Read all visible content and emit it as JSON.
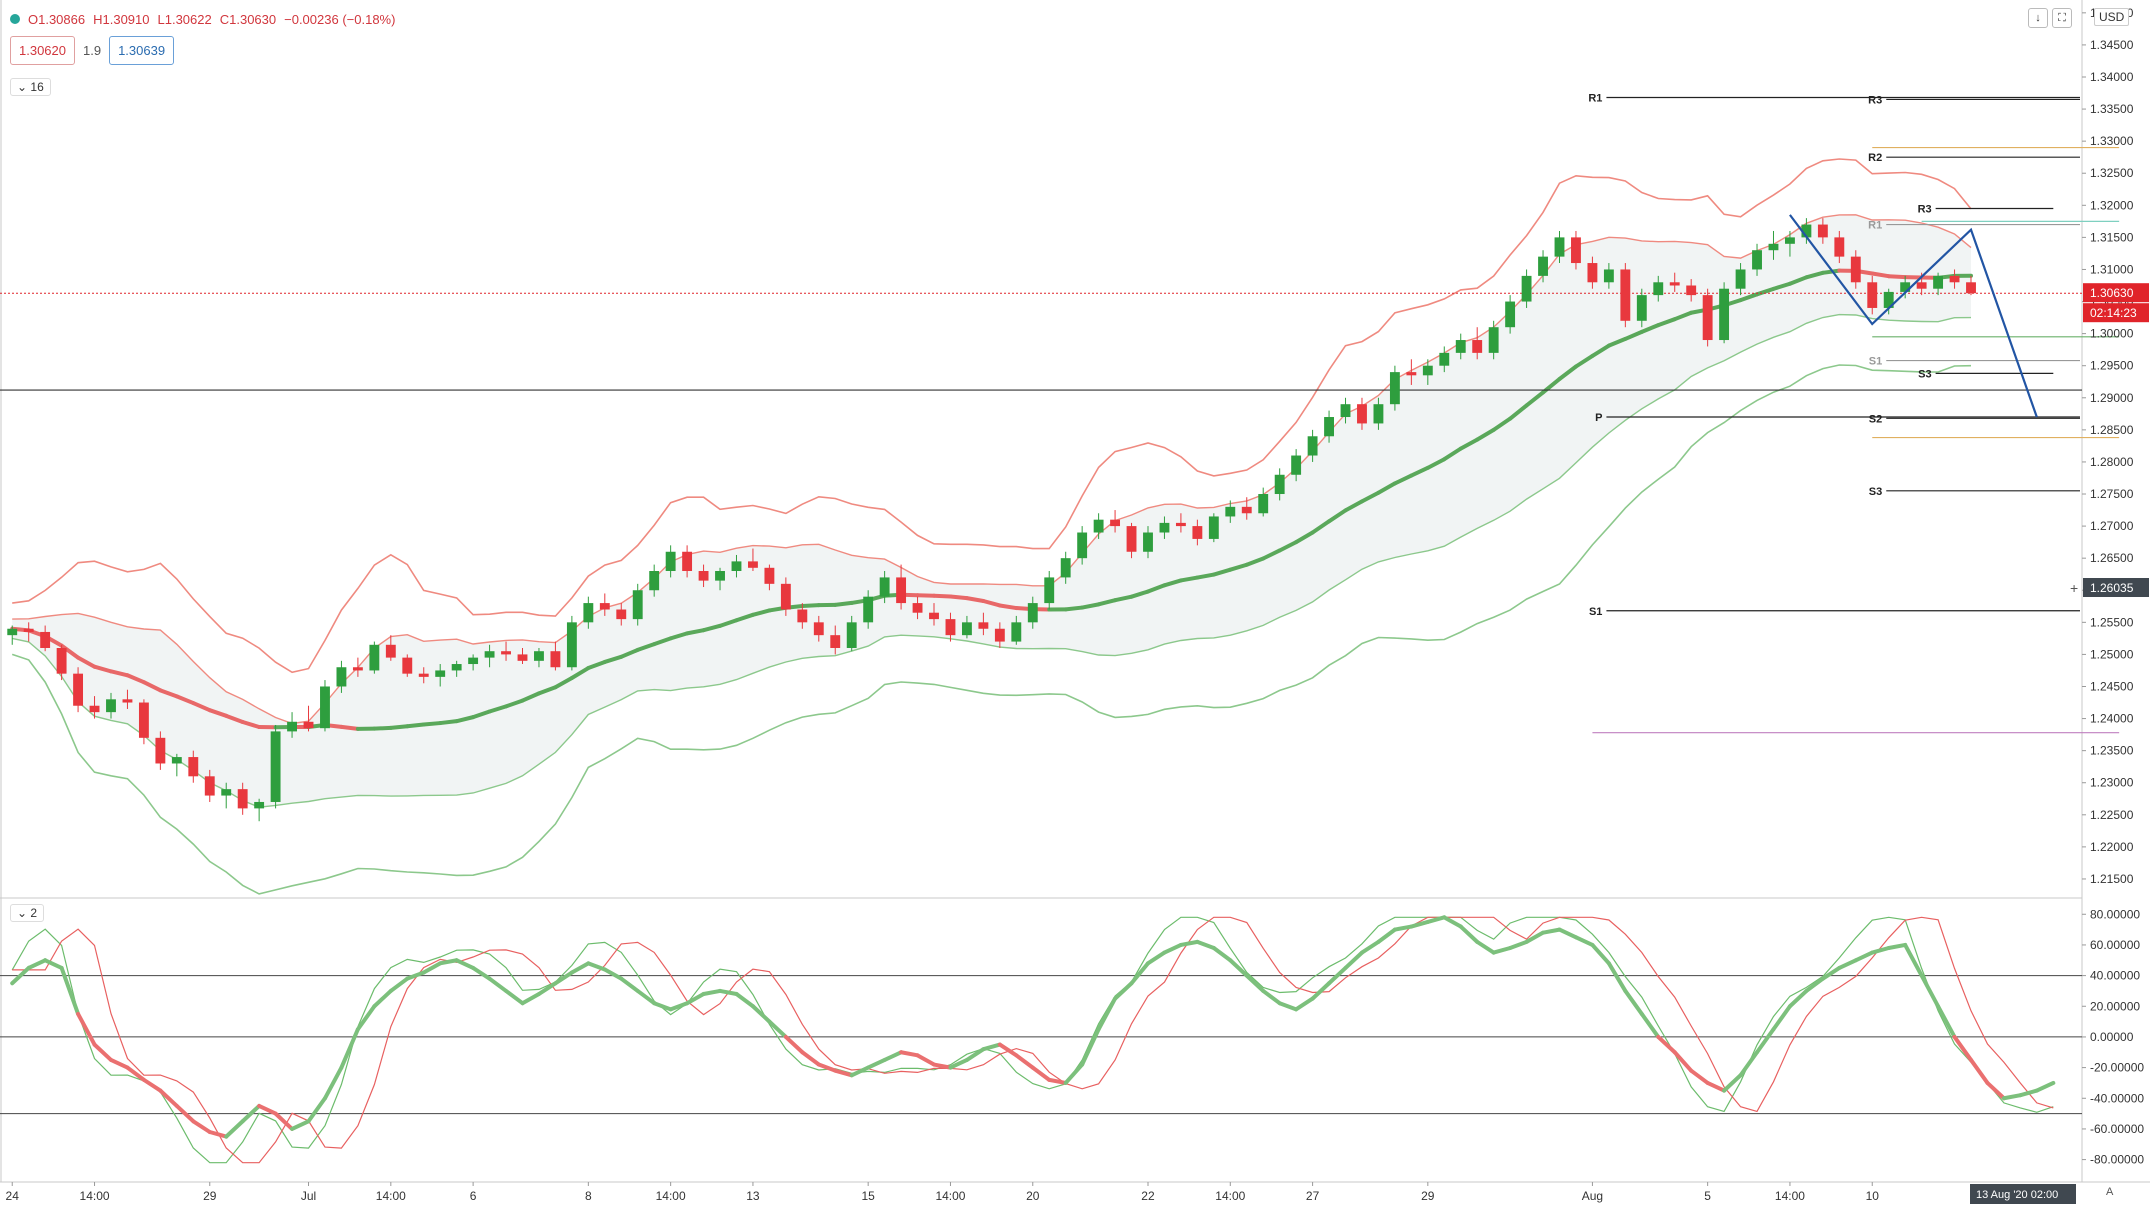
{
  "header": {
    "open": "O1.30866",
    "high": "H1.30910",
    "low": "L1.30622",
    "close": "C1.30630",
    "change": "−0.00236 (−0.18%)",
    "sell_price": "1.30620",
    "spread": "1.9",
    "buy_price": "1.30639",
    "main_indicator_count": "16",
    "osc_indicator_count": "2",
    "currency": "USD"
  },
  "colors": {
    "bull": "#26a69a",
    "bear": "#ef5350",
    "band_red": "#ef8a80",
    "band_green": "#8cc88c",
    "sma_green": "#5aa85a",
    "sma_red": "#e86868",
    "pattern_blue": "#2255a4",
    "price_label": "#e0242a",
    "crosshair_label": "#404850"
  },
  "chart_data": {
    "type": "candlestick",
    "y_axis_ticks": [
      "1.21500",
      "1.22000",
      "1.22500",
      "1.23000",
      "1.23500",
      "1.24000",
      "1.24500",
      "1.25000",
      "1.25500",
      "1.26000",
      "1.26500",
      "1.27000",
      "1.27500",
      "1.28000",
      "1.28500",
      "1.29000",
      "1.29500",
      "1.30000",
      "1.30500",
      "1.31000",
      "1.31500",
      "1.32000",
      "1.32500",
      "1.33000",
      "1.33500",
      "1.34000",
      "1.34500",
      "1.35000"
    ],
    "ylim": [
      1.2125,
      1.352
    ],
    "x_ticks": [
      {
        "label": "24",
        "i": 0
      },
      {
        "label": "14:00",
        "i": 5
      },
      {
        "label": "29",
        "i": 12
      },
      {
        "label": "Jul",
        "i": 18
      },
      {
        "label": "14:00",
        "i": 23
      },
      {
        "label": "6",
        "i": 28
      },
      {
        "label": "8",
        "i": 35
      },
      {
        "label": "14:00",
        "i": 40
      },
      {
        "label": "13",
        "i": 45
      },
      {
        "label": "15",
        "i": 52
      },
      {
        "label": "14:00",
        "i": 57
      },
      {
        "label": "20",
        "i": 62
      },
      {
        "label": "22",
        "i": 69
      },
      {
        "label": "14:00",
        "i": 74
      },
      {
        "label": "27",
        "i": 79
      },
      {
        "label": "29",
        "i": 86
      },
      {
        "label": "Aug",
        "i": 96
      },
      {
        "label": "5",
        "i": 103
      },
      {
        "label": "14:00",
        "i": 108
      },
      {
        "label": "10",
        "i": 113
      }
    ],
    "candles": [
      [
        1.253,
        1.2545,
        1.2515,
        1.254
      ],
      [
        1.254,
        1.255,
        1.252,
        1.2535
      ],
      [
        1.2535,
        1.2545,
        1.2505,
        1.251
      ],
      [
        1.251,
        1.2515,
        1.246,
        1.247
      ],
      [
        1.247,
        1.248,
        1.241,
        1.242
      ],
      [
        1.242,
        1.2435,
        1.24,
        1.241
      ],
      [
        1.241,
        1.244,
        1.24,
        1.243
      ],
      [
        1.243,
        1.2445,
        1.2415,
        1.2425
      ],
      [
        1.2425,
        1.243,
        1.236,
        1.237
      ],
      [
        1.237,
        1.238,
        1.232,
        1.233
      ],
      [
        1.233,
        1.2345,
        1.231,
        1.234
      ],
      [
        1.234,
        1.235,
        1.23,
        1.231
      ],
      [
        1.231,
        1.232,
        1.227,
        1.228
      ],
      [
        1.228,
        1.23,
        1.226,
        1.229
      ],
      [
        1.229,
        1.23,
        1.225,
        1.226
      ],
      [
        1.226,
        1.2275,
        1.224,
        1.227
      ],
      [
        1.227,
        1.239,
        1.226,
        1.238
      ],
      [
        1.238,
        1.241,
        1.237,
        1.2395
      ],
      [
        1.2395,
        1.242,
        1.238,
        1.2385
      ],
      [
        1.2385,
        1.246,
        1.238,
        1.245
      ],
      [
        1.245,
        1.249,
        1.244,
        1.248
      ],
      [
        1.248,
        1.2495,
        1.2465,
        1.2475
      ],
      [
        1.2475,
        1.252,
        1.247,
        1.2515
      ],
      [
        1.2515,
        1.253,
        1.249,
        1.2495
      ],
      [
        1.2495,
        1.25,
        1.2465,
        1.247
      ],
      [
        1.247,
        1.248,
        1.2455,
        1.2465
      ],
      [
        1.2465,
        1.2485,
        1.245,
        1.2475
      ],
      [
        1.2475,
        1.249,
        1.2465,
        1.2485
      ],
      [
        1.2485,
        1.25,
        1.2475,
        1.2495
      ],
      [
        1.2495,
        1.2515,
        1.248,
        1.2505
      ],
      [
        1.2505,
        1.252,
        1.249,
        1.25
      ],
      [
        1.25,
        1.251,
        1.2485,
        1.249
      ],
      [
        1.249,
        1.251,
        1.248,
        1.2505
      ],
      [
        1.2505,
        1.252,
        1.2475,
        1.248
      ],
      [
        1.248,
        1.256,
        1.2475,
        1.255
      ],
      [
        1.255,
        1.259,
        1.254,
        1.258
      ],
      [
        1.258,
        1.2595,
        1.256,
        1.257
      ],
      [
        1.257,
        1.258,
        1.2545,
        1.2555
      ],
      [
        1.2555,
        1.261,
        1.2545,
        1.26
      ],
      [
        1.26,
        1.264,
        1.259,
        1.263
      ],
      [
        1.263,
        1.267,
        1.262,
        1.266
      ],
      [
        1.266,
        1.267,
        1.262,
        1.263
      ],
      [
        1.263,
        1.264,
        1.2605,
        1.2615
      ],
      [
        1.2615,
        1.2635,
        1.26,
        1.263
      ],
      [
        1.263,
        1.2655,
        1.262,
        1.2645
      ],
      [
        1.2645,
        1.2665,
        1.263,
        1.2635
      ],
      [
        1.2635,
        1.264,
        1.26,
        1.261
      ],
      [
        1.261,
        1.262,
        1.256,
        1.257
      ],
      [
        1.257,
        1.258,
        1.254,
        1.255
      ],
      [
        1.255,
        1.256,
        1.252,
        1.253
      ],
      [
        1.253,
        1.2545,
        1.25,
        1.251
      ],
      [
        1.251,
        1.256,
        1.2505,
        1.255
      ],
      [
        1.255,
        1.26,
        1.254,
        1.259
      ],
      [
        1.259,
        1.263,
        1.258,
        1.262
      ],
      [
        1.262,
        1.264,
        1.257,
        1.258
      ],
      [
        1.258,
        1.259,
        1.2555,
        1.2565
      ],
      [
        1.2565,
        1.258,
        1.2545,
        1.2555
      ],
      [
        1.2555,
        1.2565,
        1.252,
        1.253
      ],
      [
        1.253,
        1.256,
        1.2525,
        1.255
      ],
      [
        1.255,
        1.2565,
        1.253,
        1.254
      ],
      [
        1.254,
        1.255,
        1.251,
        1.252
      ],
      [
        1.252,
        1.256,
        1.2515,
        1.255
      ],
      [
        1.255,
        1.259,
        1.254,
        1.258
      ],
      [
        1.258,
        1.263,
        1.257,
        1.262
      ],
      [
        1.262,
        1.266,
        1.261,
        1.265
      ],
      [
        1.265,
        1.27,
        1.264,
        1.269
      ],
      [
        1.269,
        1.272,
        1.268,
        1.271
      ],
      [
        1.271,
        1.2725,
        1.269,
        1.27
      ],
      [
        1.27,
        1.2705,
        1.265,
        1.266
      ],
      [
        1.266,
        1.27,
        1.265,
        1.269
      ],
      [
        1.269,
        1.2715,
        1.268,
        1.2705
      ],
      [
        1.2705,
        1.272,
        1.269,
        1.27
      ],
      [
        1.27,
        1.271,
        1.267,
        1.268
      ],
      [
        1.268,
        1.272,
        1.2675,
        1.2715
      ],
      [
        1.2715,
        1.274,
        1.2705,
        1.273
      ],
      [
        1.273,
        1.2745,
        1.271,
        1.272
      ],
      [
        1.272,
        1.276,
        1.2715,
        1.275
      ],
      [
        1.275,
        1.279,
        1.274,
        1.278
      ],
      [
        1.278,
        1.282,
        1.277,
        1.281
      ],
      [
        1.281,
        1.285,
        1.28,
        1.284
      ],
      [
        1.284,
        1.288,
        1.283,
        1.287
      ],
      [
        1.287,
        1.29,
        1.286,
        1.289
      ],
      [
        1.289,
        1.29,
        1.285,
        1.286
      ],
      [
        1.286,
        1.29,
        1.285,
        1.289
      ],
      [
        1.289,
        1.295,
        1.288,
        1.294
      ],
      [
        1.294,
        1.296,
        1.292,
        1.2935
      ],
      [
        1.2935,
        1.296,
        1.292,
        1.295
      ],
      [
        1.295,
        1.298,
        1.294,
        1.297
      ],
      [
        1.297,
        1.3,
        1.296,
        1.299
      ],
      [
        1.299,
        1.301,
        1.296,
        1.297
      ],
      [
        1.297,
        1.302,
        1.296,
        1.301
      ],
      [
        1.301,
        1.306,
        1.3,
        1.305
      ],
      [
        1.305,
        1.31,
        1.304,
        1.309
      ],
      [
        1.309,
        1.313,
        1.308,
        1.312
      ],
      [
        1.312,
        1.316,
        1.311,
        1.315
      ],
      [
        1.315,
        1.316,
        1.31,
        1.311
      ],
      [
        1.311,
        1.312,
        1.307,
        1.308
      ],
      [
        1.308,
        1.311,
        1.307,
        1.31
      ],
      [
        1.31,
        1.311,
        1.301,
        1.302
      ],
      [
        1.302,
        1.307,
        1.301,
        1.306
      ],
      [
        1.306,
        1.309,
        1.305,
        1.308
      ],
      [
        1.308,
        1.3095,
        1.3065,
        1.3075
      ],
      [
        1.3075,
        1.3085,
        1.305,
        1.306
      ],
      [
        1.306,
        1.307,
        1.298,
        1.299
      ],
      [
        1.299,
        1.308,
        1.2985,
        1.307
      ],
      [
        1.307,
        1.311,
        1.306,
        1.31
      ],
      [
        1.31,
        1.314,
        1.309,
        1.313
      ],
      [
        1.313,
        1.316,
        1.3115,
        1.314
      ],
      [
        1.314,
        1.316,
        1.312,
        1.315
      ],
      [
        1.315,
        1.318,
        1.314,
        1.317
      ],
      [
        1.317,
        1.318,
        1.314,
        1.315
      ],
      [
        1.315,
        1.316,
        1.311,
        1.312
      ],
      [
        1.312,
        1.313,
        1.307,
        1.308
      ],
      [
        1.308,
        1.309,
        1.303,
        1.304
      ],
      [
        1.304,
        1.307,
        1.303,
        1.3065
      ],
      [
        1.3065,
        1.309,
        1.3055,
        1.308
      ],
      [
        1.308,
        1.3095,
        1.306,
        1.307
      ],
      [
        1.307,
        1.3095,
        1.306,
        1.309
      ],
      [
        1.309,
        1.31,
        1.307,
        1.308
      ],
      [
        1.308,
        1.309,
        1.306,
        1.3063
      ]
    ],
    "price_label": "1.30630",
    "countdown": "02:14:23",
    "crosshair_price": "1.26035",
    "crosshair_price_value": 1.26035,
    "crosshair_date": "13 Aug '20   02:00",
    "pivots": [
      {
        "label": "R1",
        "value": 1.3368,
        "from_i": 96,
        "to_i": 124,
        "color": "#222222"
      },
      {
        "label": "R3",
        "value": 1.3365,
        "from_i": 113,
        "to_i": 124,
        "color": "#222222"
      },
      {
        "label": "R2",
        "value": 1.3275,
        "from_i": 113,
        "to_i": 124,
        "color": "#222222"
      },
      {
        "label": "R3",
        "value": 1.3195,
        "from_i": 116,
        "to_i": 120,
        "color": "#222222"
      },
      {
        "label": "R1",
        "value": 1.317,
        "from_i": 113,
        "to_i": 124,
        "color": "#999999"
      },
      {
        "label": "S1",
        "value": 1.2958,
        "from_i": 113,
        "to_i": 124,
        "color": "#999999"
      },
      {
        "label": "S3",
        "value": 1.2938,
        "from_i": 116,
        "to_i": 120,
        "color": "#222222"
      },
      {
        "label": "P",
        "value": 1.287,
        "from_i": 96,
        "to_i": 124,
        "color": "#222222"
      },
      {
        "label": "S2",
        "value": 1.2868,
        "from_i": 113,
        "to_i": 124,
        "color": "#222222"
      },
      {
        "label": "S3",
        "value": 1.2755,
        "from_i": 113,
        "to_i": 124,
        "color": "#222222"
      },
      {
        "label": "S1",
        "value": 1.2568,
        "from_i": 96,
        "to_i": 124,
        "color": "#222222"
      }
    ],
    "extra_lines": [
      {
        "value": 1.329,
        "from_i": 113,
        "to_i": 124,
        "color": "#e0b060"
      },
      {
        "value": 1.3175,
        "from_i": 116,
        "to_i": 124,
        "color": "#7fd0c0"
      },
      {
        "value": 1.2838,
        "from_i": 113,
        "to_i": 124,
        "color": "#e0b060"
      },
      {
        "value": 1.2378,
        "from_i": 96,
        "to_i": 124,
        "color": "#c080c0"
      },
      {
        "value": 1.2995,
        "from_i": 113,
        "to_i": 124,
        "color": "#6ab06a"
      }
    ],
    "horizontal_level": 1.2912,
    "pattern": [
      [
        108,
        1.3185
      ],
      [
        113,
        1.3015
      ],
      [
        119,
        1.3162
      ],
      [
        123,
        1.287
      ]
    ],
    "osc_ticks": [
      "80.00000",
      "60.00000",
      "40.00000",
      "20.00000",
      "0.00000",
      "-20.00000",
      "-40.00000",
      "-60.00000",
      "-80.00000"
    ],
    "osc_ylim": [
      -92,
      88
    ],
    "osc_levels": [
      40,
      0,
      -50
    ],
    "osc_main": [
      35,
      45,
      50,
      45,
      15,
      -5,
      -15,
      -20,
      -28,
      -35,
      -45,
      -55,
      -62,
      -65,
      -55,
      -45,
      -50,
      -60,
      -55,
      -40,
      -20,
      5,
      20,
      30,
      38,
      42,
      48,
      50,
      45,
      38,
      30,
      22,
      28,
      35,
      42,
      48,
      44,
      38,
      30,
      22,
      18,
      22,
      28,
      30,
      28,
      20,
      10,
      0,
      -10,
      -18,
      -22,
      -25,
      -20,
      -15,
      -10,
      -12,
      -18,
      -20,
      -15,
      -8,
      -5,
      -12,
      -20,
      -28,
      -30,
      -18,
      5,
      25,
      35,
      48,
      55,
      60,
      62,
      58,
      50,
      40,
      30,
      22,
      18,
      25,
      35,
      45,
      55,
      62,
      70,
      72,
      75,
      78,
      72,
      62,
      55,
      58,
      62,
      68,
      70,
      65,
      60,
      48,
      30,
      15,
      0,
      -10,
      -22,
      -30,
      -35,
      -25,
      -10,
      5,
      20,
      30,
      38,
      45,
      50,
      55,
      58,
      60,
      40,
      20,
      0,
      -15,
      -30,
      -40,
      -38,
      -35,
      -30
    ]
  }
}
